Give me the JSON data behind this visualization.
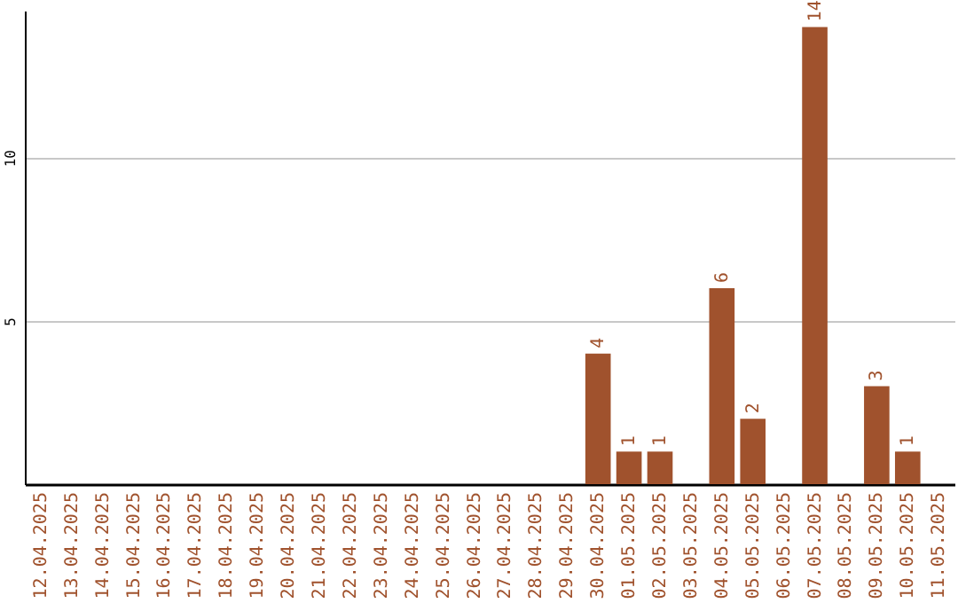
{
  "chart_data": {
    "type": "bar",
    "categories": [
      "12.04.2025",
      "13.04.2025",
      "14.04.2025",
      "15.04.2025",
      "16.04.2025",
      "17.04.2025",
      "18.04.2025",
      "19.04.2025",
      "20.04.2025",
      "21.04.2025",
      "22.04.2025",
      "23.04.2025",
      "24.04.2025",
      "25.04.2025",
      "26.04.2025",
      "27.04.2025",
      "28.04.2025",
      "29.04.2025",
      "30.04.2025",
      "01.05.2025",
      "02.05.2025",
      "03.05.2025",
      "04.05.2025",
      "05.05.2025",
      "06.05.2025",
      "07.05.2025",
      "08.05.2025",
      "09.05.2025",
      "10.05.2025",
      "11.05.2025"
    ],
    "values": [
      0,
      0,
      0,
      0,
      0,
      0,
      0,
      0,
      0,
      0,
      0,
      0,
      0,
      0,
      0,
      0,
      0,
      0,
      4,
      1,
      1,
      0,
      6,
      2,
      0,
      14,
      0,
      3,
      1,
      0
    ],
    "value_labels": [
      null,
      null,
      null,
      null,
      null,
      null,
      null,
      null,
      null,
      null,
      null,
      null,
      null,
      null,
      null,
      null,
      null,
      null,
      "4",
      "1",
      "1",
      null,
      "6",
      "2",
      null,
      "14",
      null,
      "3",
      "1",
      null
    ],
    "color": "#a0522d",
    "ylim": [
      0,
      14.5
    ],
    "yticks": [
      5,
      10
    ],
    "grid": "y"
  }
}
